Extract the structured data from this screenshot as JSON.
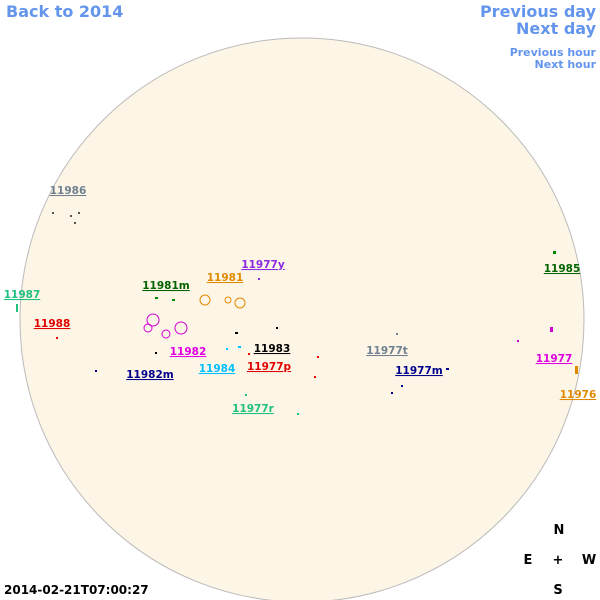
{
  "nav": {
    "back_year": "Back to 2014",
    "previous_day": "Previous day",
    "next_day": "Next day",
    "previous_hour": "Previous hour",
    "next_hour": "Next hour"
  },
  "regions": [
    "11986",
    "11987",
    "11988",
    "11981m",
    "11981",
    "11977y",
    "11982",
    "11982m",
    "11984",
    "11983",
    "11977p",
    "11977r",
    "11977t",
    "11977m",
    "11985",
    "11977",
    "11976"
  ],
  "compass": {
    "north": "N",
    "east": "E",
    "center": "+",
    "west": "W",
    "south": "S"
  },
  "timestamp": "2014-02-21T07:00:27"
}
